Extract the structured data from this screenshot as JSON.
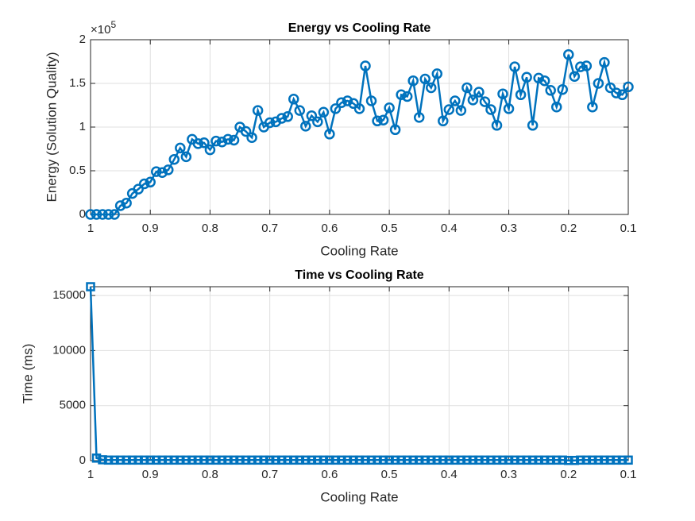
{
  "chart_data": [
    {
      "type": "line",
      "title": "Energy vs Cooling Rate",
      "xlabel": "Cooling Rate",
      "ylabel": "Energy (Solution Quality)",
      "y_multiplier": "×10",
      "y_multiplier_exponent": "5",
      "x": [
        1,
        0.99,
        0.98,
        0.97,
        0.96,
        0.95,
        0.94,
        0.93,
        0.92,
        0.91,
        0.9,
        0.89,
        0.88,
        0.87,
        0.86,
        0.85,
        0.84,
        0.83,
        0.82,
        0.81,
        0.8,
        0.79,
        0.78,
        0.77,
        0.76,
        0.75,
        0.74,
        0.73,
        0.72,
        0.71,
        0.7,
        0.69,
        0.68,
        0.67,
        0.66,
        0.65,
        0.64,
        0.63,
        0.62,
        0.61,
        0.6,
        0.59,
        0.58,
        0.57,
        0.56,
        0.55,
        0.54,
        0.53,
        0.52,
        0.51,
        0.5,
        0.49,
        0.48,
        0.47,
        0.46,
        0.45,
        0.44,
        0.43,
        0.42,
        0.41,
        0.4,
        0.39,
        0.38,
        0.37,
        0.36,
        0.35,
        0.34,
        0.33,
        0.32,
        0.31,
        0.3,
        0.29,
        0.28,
        0.27,
        0.26,
        0.25,
        0.24,
        0.23,
        0.22,
        0.21,
        0.2,
        0.19,
        0.18,
        0.17,
        0.16,
        0.15,
        0.14,
        0.13,
        0.12,
        0.11,
        0.1
      ],
      "series": [
        {
          "color": "#0072bd",
          "marker": "o",
          "values": [
            0,
            0,
            0,
            0,
            0,
            0.1,
            0.13,
            0.24,
            0.29,
            0.35,
            0.37,
            0.49,
            0.48,
            0.51,
            0.63,
            0.76,
            0.66,
            0.86,
            0.81,
            0.82,
            0.74,
            0.84,
            0.83,
            0.86,
            0.85,
            1.0,
            0.95,
            0.88,
            1.19,
            1.0,
            1.05,
            1.06,
            1.1,
            1.12,
            1.32,
            1.19,
            1.01,
            1.13,
            1.06,
            1.17,
            0.92,
            1.21,
            1.28,
            1.3,
            1.27,
            1.21,
            1.7,
            1.3,
            1.07,
            1.08,
            1.22,
            0.97,
            1.37,
            1.35,
            1.53,
            1.11,
            1.55,
            1.45,
            1.61,
            1.07,
            1.2,
            1.3,
            1.19,
            1.45,
            1.31,
            1.4,
            1.29,
            1.2,
            1.02,
            1.38,
            1.21,
            1.69,
            1.37,
            1.57,
            1.02,
            1.56,
            1.53,
            1.42,
            1.23,
            1.43,
            1.83,
            1.58,
            1.69,
            1.7,
            1.23,
            1.5,
            1.74,
            1.45,
            1.39,
            1.37,
            1.46
          ]
        }
      ],
      "xlim": [
        1,
        0.1
      ],
      "xticks": [
        1,
        0.9,
        0.8,
        0.7,
        0.6,
        0.5,
        0.4,
        0.3,
        0.2,
        0.1
      ],
      "ylim": [
        0,
        2
      ],
      "yticks": [
        0,
        0.5,
        1,
        1.5,
        2
      ],
      "grid": true
    },
    {
      "type": "line",
      "title": "Time vs Cooling Rate",
      "xlabel": "Cooling Rate",
      "ylabel": "Time (ms)",
      "x": [
        1,
        0.99,
        0.98,
        0.97,
        0.96,
        0.95,
        0.94,
        0.93,
        0.92,
        0.91,
        0.9,
        0.89,
        0.88,
        0.87,
        0.86,
        0.85,
        0.84,
        0.83,
        0.82,
        0.81,
        0.8,
        0.79,
        0.78,
        0.77,
        0.76,
        0.75,
        0.74,
        0.73,
        0.72,
        0.71,
        0.7,
        0.69,
        0.68,
        0.67,
        0.66,
        0.65,
        0.64,
        0.63,
        0.62,
        0.61,
        0.6,
        0.59,
        0.58,
        0.57,
        0.56,
        0.55,
        0.54,
        0.53,
        0.52,
        0.51,
        0.5,
        0.49,
        0.48,
        0.47,
        0.46,
        0.45,
        0.44,
        0.43,
        0.42,
        0.41,
        0.4,
        0.39,
        0.38,
        0.37,
        0.36,
        0.35,
        0.34,
        0.33,
        0.32,
        0.31,
        0.3,
        0.29,
        0.28,
        0.27,
        0.26,
        0.25,
        0.24,
        0.23,
        0.22,
        0.21,
        0.2,
        0.19,
        0.18,
        0.17,
        0.16,
        0.15,
        0.14,
        0.13,
        0.12,
        0.11,
        0.1
      ],
      "series": [
        {
          "color": "#0072bd",
          "marker": "s",
          "values": [
            15800,
            230,
            80,
            50,
            50,
            50,
            50,
            50,
            50,
            50,
            50,
            50,
            50,
            50,
            50,
            50,
            50,
            50,
            50,
            50,
            50,
            50,
            50,
            50,
            50,
            50,
            50,
            50,
            50,
            50,
            50,
            50,
            50,
            50,
            50,
            50,
            50,
            50,
            50,
            50,
            50,
            50,
            50,
            50,
            50,
            50,
            50,
            50,
            50,
            50,
            50,
            50,
            50,
            50,
            50,
            50,
            50,
            50,
            50,
            50,
            50,
            50,
            50,
            50,
            50,
            50,
            50,
            50,
            50,
            50,
            50,
            50,
            50,
            50,
            50,
            50,
            50,
            50,
            50,
            50,
            20,
            20,
            50,
            50,
            50,
            50,
            50,
            50,
            50,
            50,
            50
          ]
        }
      ],
      "xlim": [
        1,
        0.1
      ],
      "xticks": [
        1,
        0.9,
        0.8,
        0.7,
        0.6,
        0.5,
        0.4,
        0.3,
        0.2,
        0.1
      ],
      "ylim": [
        0,
        15800
      ],
      "yticks": [
        0,
        5000,
        10000,
        15000
      ],
      "grid": true
    }
  ]
}
